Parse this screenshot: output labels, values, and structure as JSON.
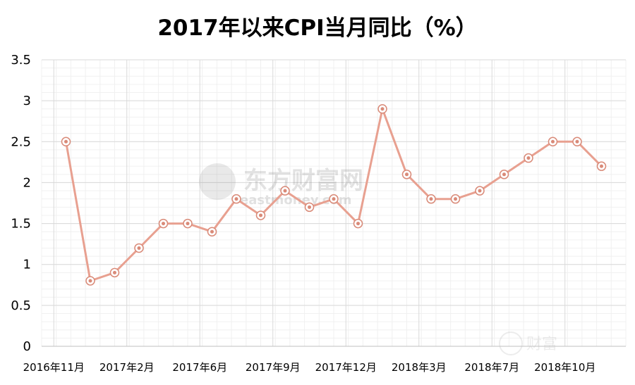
{
  "chart_data": {
    "type": "line",
    "title": "2017年以来CPI当月同比（%）",
    "xlabel": "",
    "ylabel": "",
    "ylim": [
      0,
      3.5
    ],
    "y_ticks": [
      "0",
      "0.5",
      "1",
      "1.5",
      "2",
      "2.5",
      "3",
      "3.5"
    ],
    "x_ticks": [
      "2016年11月",
      "2017年2月",
      "2017年6月",
      "2017年9月",
      "2017年12月",
      "2018年3月",
      "2018年7月",
      "2018年10月"
    ],
    "grid": true,
    "series": [
      {
        "values": [
          2.5,
          0.8,
          0.9,
          1.2,
          1.5,
          1.5,
          1.4,
          1.8,
          1.6,
          1.9,
          1.7,
          1.8,
          1.5,
          2.9,
          2.1,
          1.8,
          1.8,
          1.9,
          2.1,
          2.3,
          2.5,
          2.5,
          2.2
        ],
        "color": "#e8a090"
      }
    ]
  },
  "watermark": {
    "brand": "东方财富网",
    "url": "eastmoney.com",
    "corner": "财富"
  }
}
